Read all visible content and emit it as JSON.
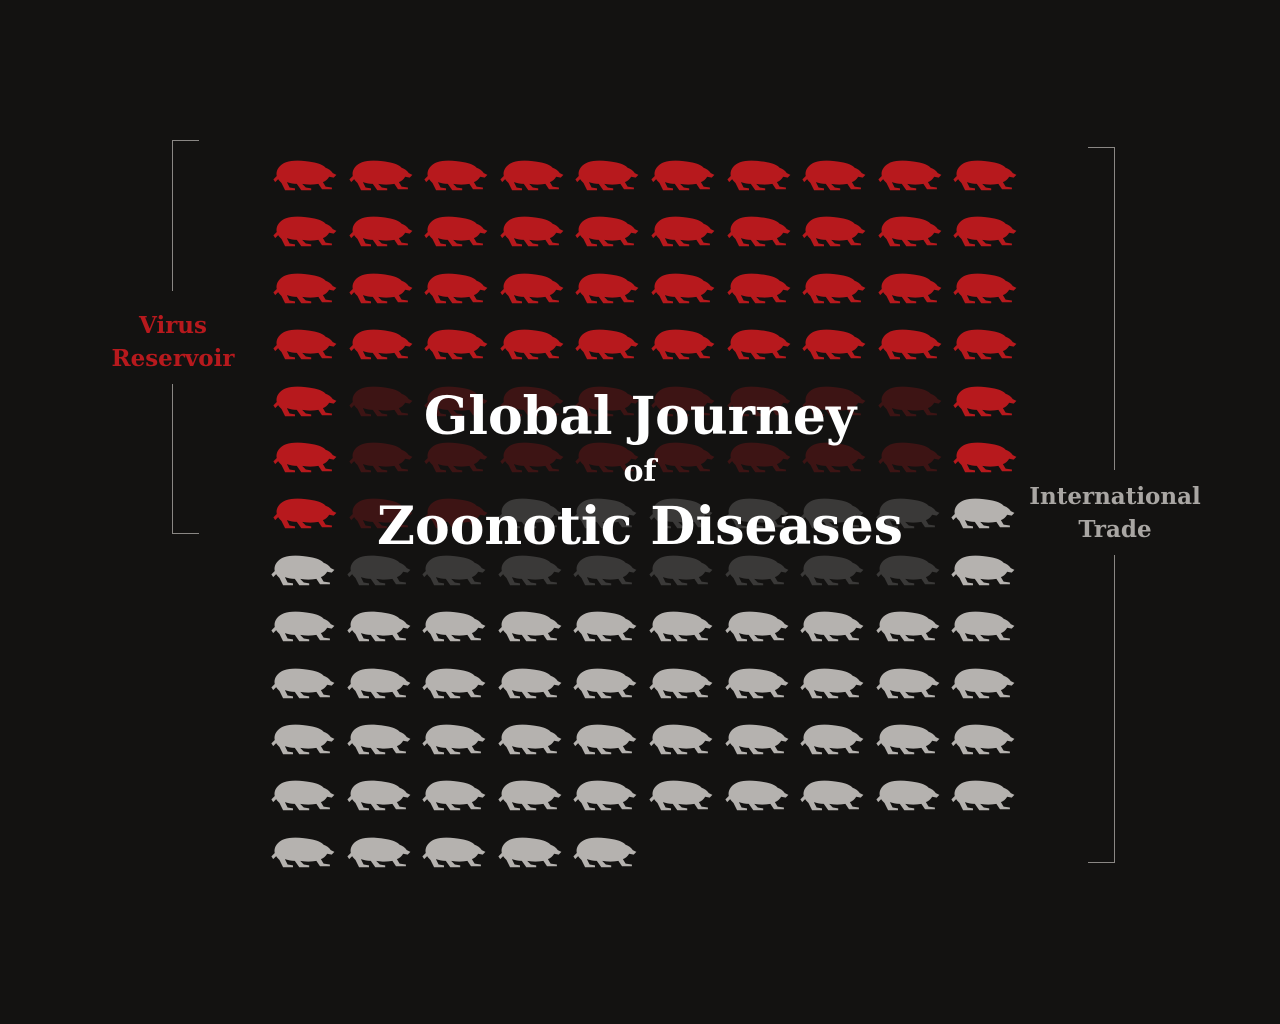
{
  "title": {
    "line1": "Global Journey",
    "line2": "of",
    "line3": "Zoonotic Diseases"
  },
  "labels": {
    "virus_reservoir": "Virus\nReservoir",
    "international_trade": "International\nTrade"
  },
  "icon": "walking-mammal-icon",
  "colors": {
    "background": "#131211",
    "reservoir": "#b7191d",
    "trade": "#b5b2af",
    "reservoir_faded": "#3d1414",
    "trade_faded": "#3a3938",
    "bracket": "#8a8784",
    "title": "#ffffff"
  },
  "grid": {
    "columns": 10,
    "total_icons": 125,
    "reservoir_icons": 63,
    "trade_icons": 62
  }
}
